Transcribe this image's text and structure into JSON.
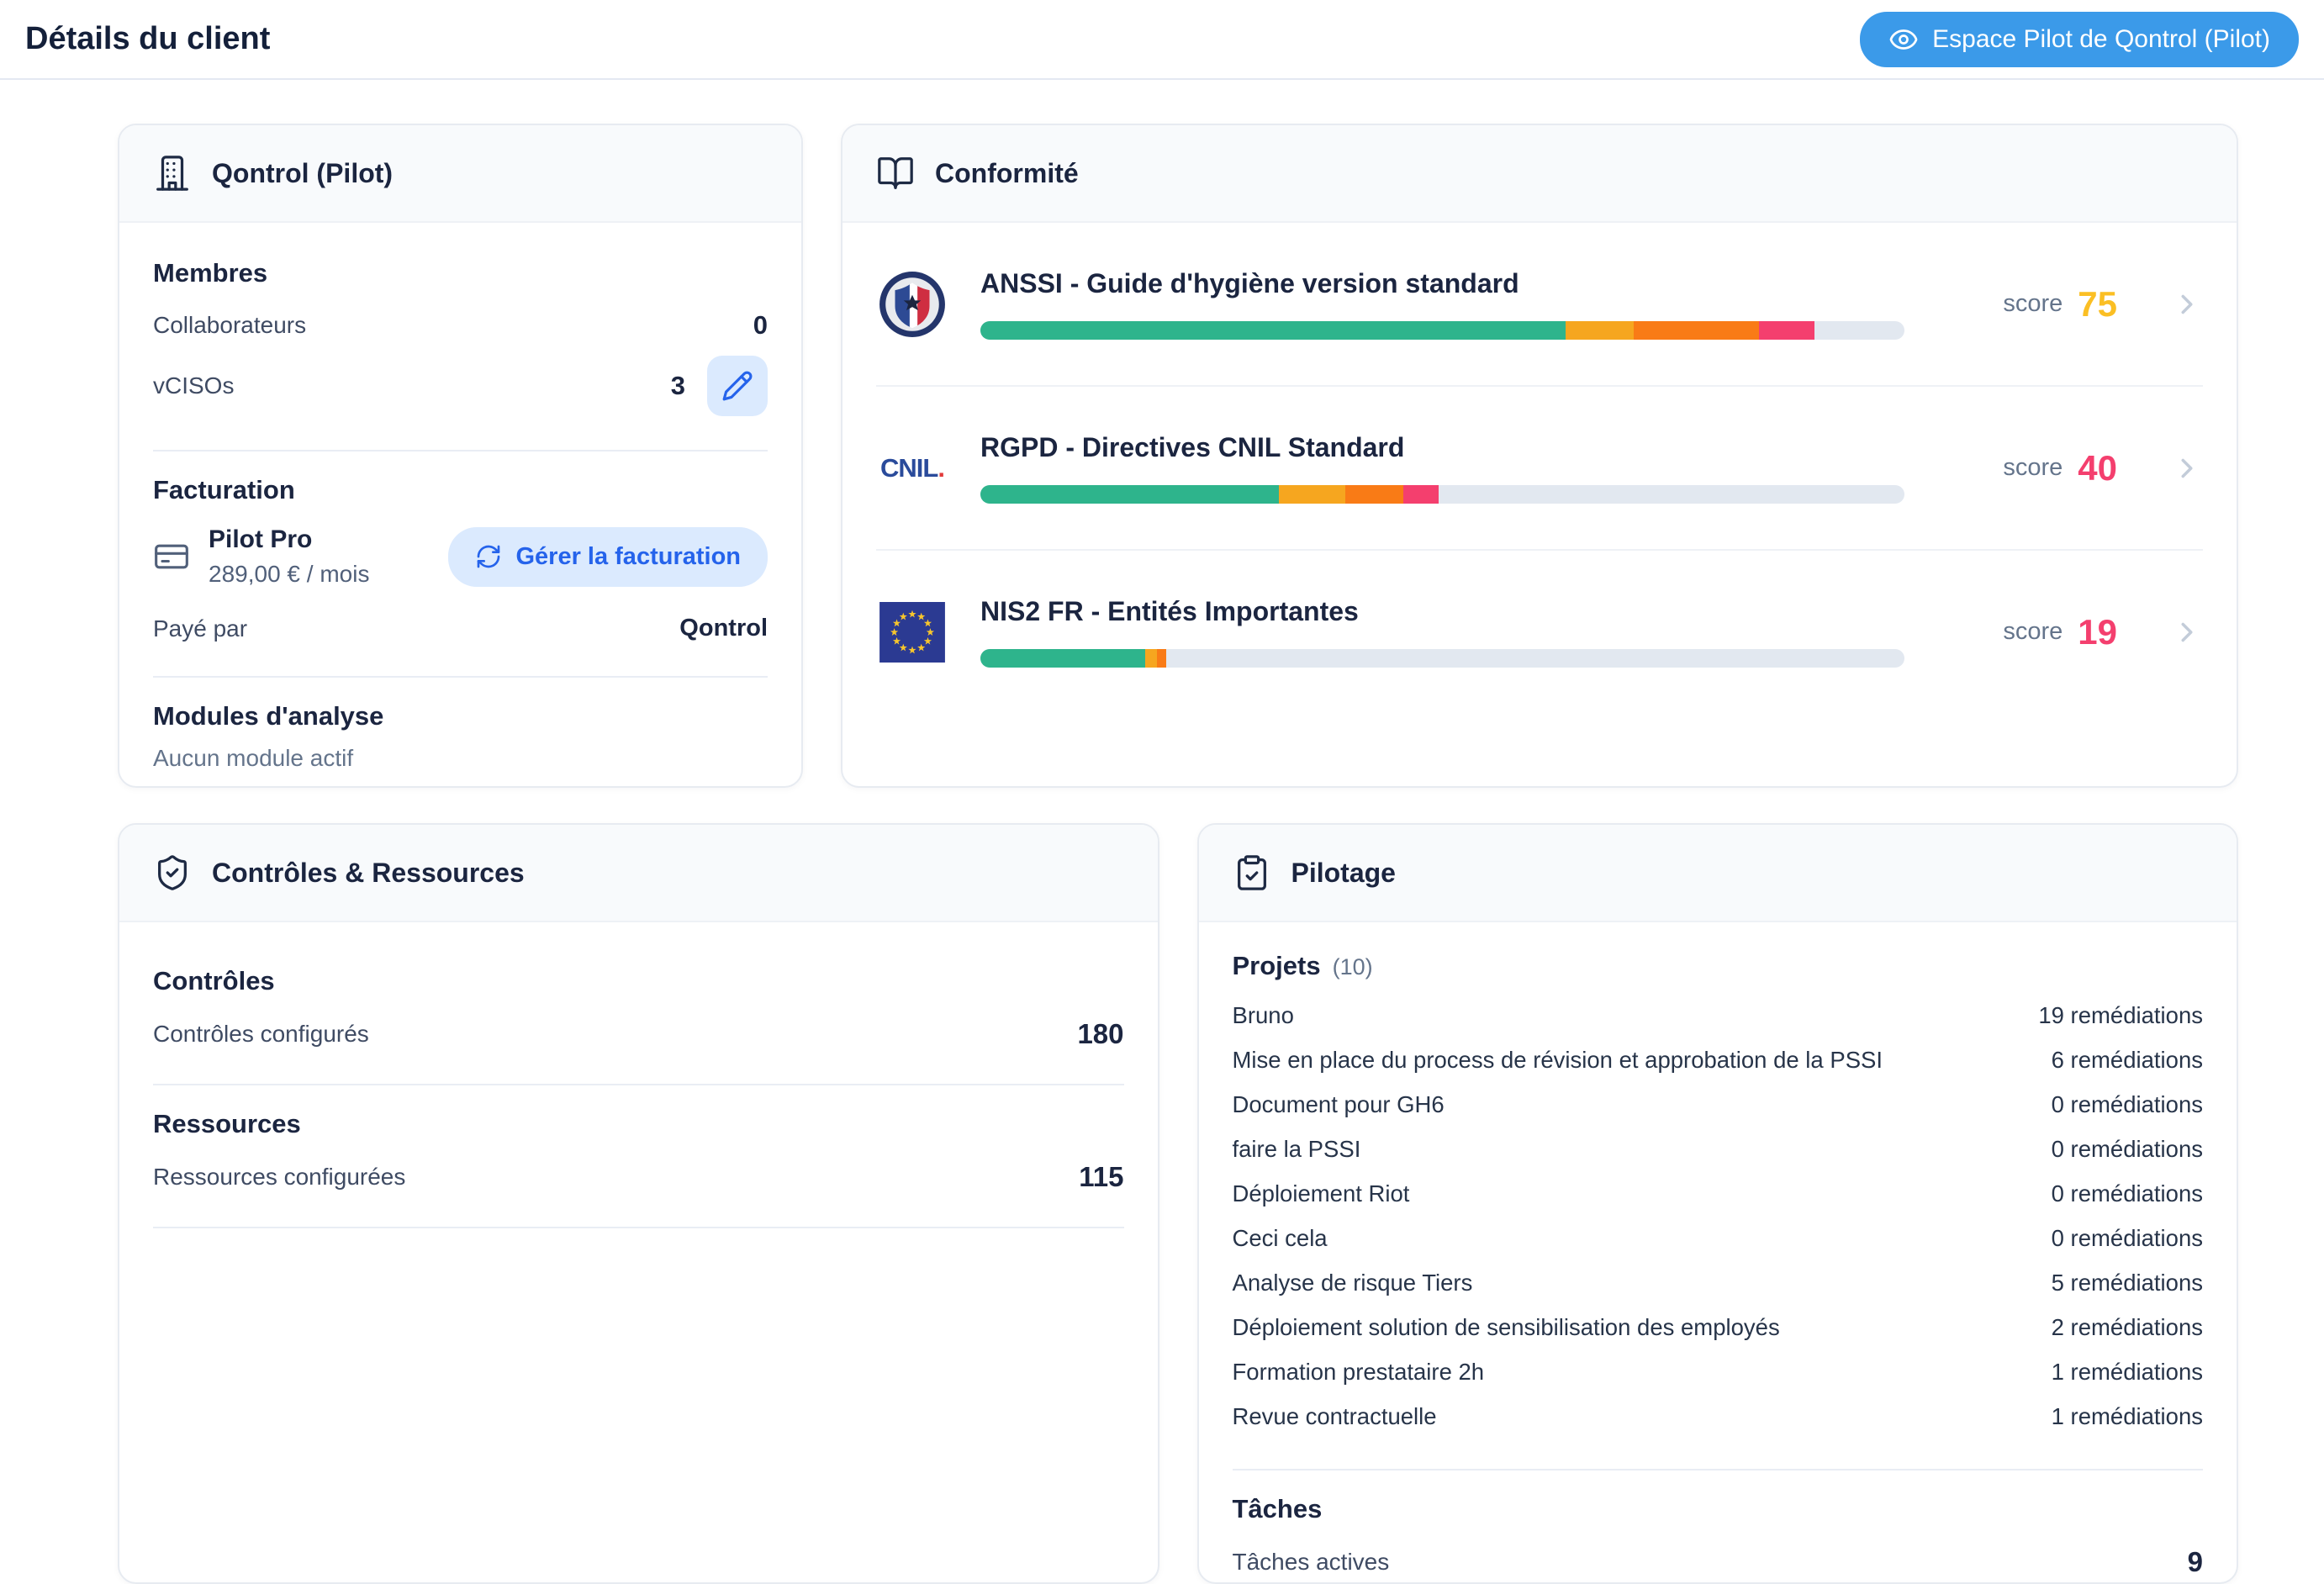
{
  "header": {
    "title": "Détails du client",
    "action_button": "Espace Pilot de Qontrol (Pilot)"
  },
  "client_card": {
    "title": "Qontrol (Pilot)",
    "members": {
      "heading": "Membres",
      "rows": [
        {
          "label": "Collaborateurs",
          "value": "0"
        },
        {
          "label": "vCISOs",
          "value": "3"
        }
      ]
    },
    "billing": {
      "heading": "Facturation",
      "plan_name": "Pilot Pro",
      "plan_price": "289,00 € / mois",
      "manage_button": "Gérer la facturation",
      "paid_by_label": "Payé par",
      "paid_by_value": "Qontrol"
    },
    "modules": {
      "heading": "Modules d'analyse",
      "empty_text": "Aucun module actif"
    }
  },
  "compliance_card": {
    "title": "Conformité",
    "score_label": "score",
    "segment_colors": [
      "#2eb48c",
      "#f6a61f",
      "#f97b16",
      "#f43f6e"
    ],
    "track_color": "#e2e8f0",
    "items": [
      {
        "name": "ANSSI - Guide d'hygiène version standard",
        "logo": "anssi",
        "score": "75",
        "score_color": "#fbbf24",
        "segments": [
          63.3,
          7.4,
          13.6,
          6.0
        ]
      },
      {
        "name": "RGPD - Directives CNIL Standard",
        "logo": "cnil",
        "score": "40",
        "score_color": "#f43f6e",
        "segments": [
          32.3,
          7.2,
          6.3,
          3.8
        ]
      },
      {
        "name": "NIS2 FR - Entités Importantes",
        "logo": "eu",
        "score": "19",
        "score_color": "#f43f6e",
        "segments": [
          17.8,
          1.3,
          1.0,
          0
        ]
      }
    ]
  },
  "controls_card": {
    "title": "Contrôles & Ressources",
    "sections": [
      {
        "heading": "Contrôles",
        "label": "Contrôles configurés",
        "value": "180"
      },
      {
        "heading": "Ressources",
        "label": "Ressources configurées",
        "value": "115"
      }
    ]
  },
  "steering_card": {
    "title": "Pilotage",
    "projects_heading": "Projets",
    "projects_count": "(10)",
    "projects": [
      {
        "name": "Bruno",
        "remediations": "19 remédiations"
      },
      {
        "name": "Mise en place du process de révision et approbation de la PSSI",
        "remediations": "6 remédiations"
      },
      {
        "name": "Document pour GH6",
        "remediations": "0 remédiations"
      },
      {
        "name": "faire la PSSI",
        "remediations": "0 remédiations"
      },
      {
        "name": "Déploiement Riot",
        "remediations": "0 remédiations"
      },
      {
        "name": "Ceci cela",
        "remediations": "0 remédiations"
      },
      {
        "name": "Analyse de risque Tiers",
        "remediations": "5 remédiations"
      },
      {
        "name": "Déploiement solution de sensibilisation des employés",
        "remediations": "2 remédiations"
      },
      {
        "name": "Formation prestataire 2h",
        "remediations": "1 remédiations"
      },
      {
        "name": "Revue contractuelle",
        "remediations": "1 remédiations"
      }
    ],
    "tasks_heading": "Tâches",
    "tasks_label": "Tâches actives",
    "tasks_value": "9"
  }
}
